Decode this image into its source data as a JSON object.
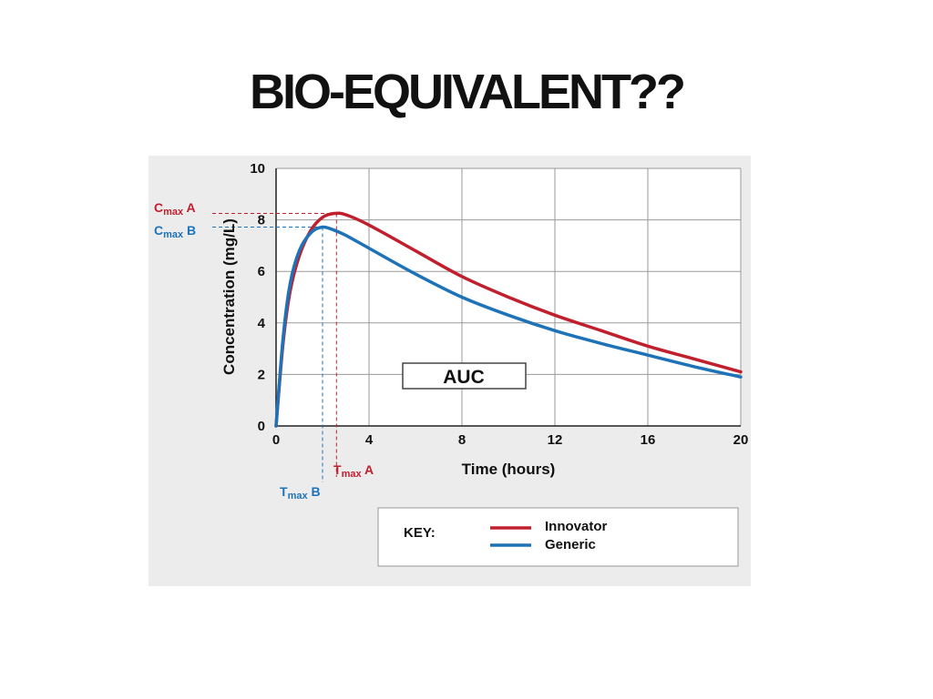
{
  "slide": {
    "title": "BIO-EQUIVALENT??"
  },
  "chart_data": {
    "type": "line",
    "title": "",
    "xlabel": "Time (hours)",
    "ylabel": "Concentration (mg/L)",
    "xlim": [
      0,
      20
    ],
    "ylim": [
      0,
      10
    ],
    "x_ticks": [
      0,
      4,
      8,
      12,
      16,
      20
    ],
    "y_ticks": [
      0,
      2,
      4,
      6,
      8,
      10
    ],
    "grid": true,
    "series": [
      {
        "name": "Innovator",
        "color": "#c0202e",
        "x": [
          0,
          0.3,
          0.6,
          1.0,
          1.5,
          2.0,
          2.5,
          3,
          4,
          6,
          8,
          10,
          12,
          14,
          16,
          18,
          20
        ],
        "y": [
          0,
          3.2,
          5.2,
          6.6,
          7.6,
          8.1,
          8.25,
          8.2,
          7.8,
          6.8,
          5.8,
          5.0,
          4.3,
          3.7,
          3.1,
          2.6,
          2.1
        ]
      },
      {
        "name": "Generic",
        "color": "#1e73b8",
        "x": [
          0,
          0.3,
          0.6,
          1.0,
          1.5,
          2.0,
          2.5,
          3,
          4,
          6,
          8,
          10,
          12,
          14,
          16,
          18,
          20
        ],
        "y": [
          0,
          3.4,
          5.5,
          6.8,
          7.5,
          7.72,
          7.6,
          7.4,
          6.9,
          5.9,
          5.0,
          4.3,
          3.7,
          3.2,
          2.75,
          2.3,
          1.9
        ]
      }
    ],
    "annotations": {
      "cmax_a": {
        "main": "C",
        "sub": "max",
        "suffix": " A",
        "value": 8.25,
        "color": "#c0202e"
      },
      "cmax_b": {
        "main": "C",
        "sub": "max",
        "suffix": " B",
        "value": 7.72,
        "color": "#1e73b8"
      },
      "tmax_a": {
        "main": "T",
        "sub": "max",
        "suffix": " A",
        "value": 2.6,
        "color": "#c0202e"
      },
      "tmax_b": {
        "main": "T",
        "sub": "max",
        "suffix": " B",
        "value": 2.0,
        "color": "#1e73b8"
      },
      "auc_label": "AUC"
    },
    "key": {
      "label": "KEY:",
      "items": [
        {
          "name": "Innovator",
          "color": "#c0202e"
        },
        {
          "name": "Generic",
          "color": "#1e73b8"
        }
      ]
    }
  }
}
